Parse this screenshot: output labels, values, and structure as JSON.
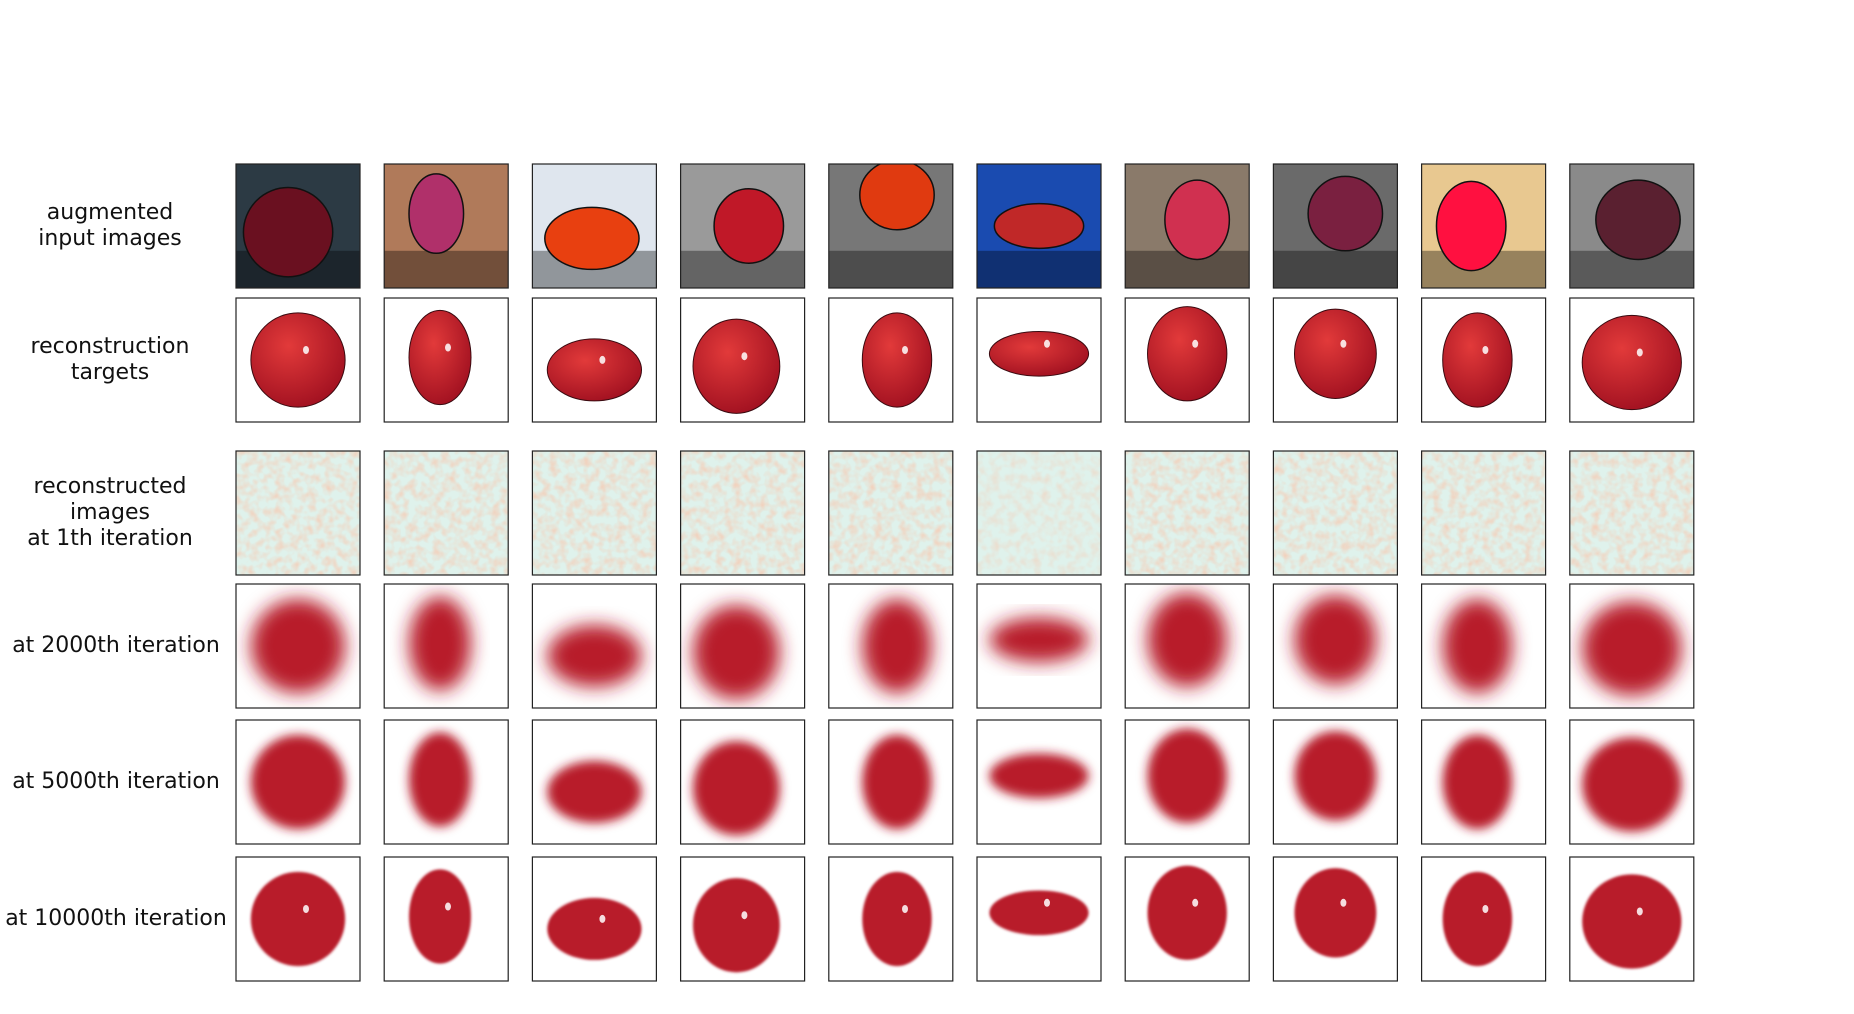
{
  "rows": [
    {
      "label_lines": [
        "augmented",
        "input images"
      ]
    },
    {
      "label_lines": [
        "reconstruction",
        "targets"
      ]
    },
    {
      "label_lines": [
        "reconstructed",
        "images",
        "at 1th iteration"
      ]
    },
    {
      "label_lines": [
        "at 2000th iteration"
      ]
    },
    {
      "label_lines": [
        "at 5000th iteration"
      ]
    },
    {
      "label_lines": [
        "at 10000th iteration"
      ]
    }
  ]
}
